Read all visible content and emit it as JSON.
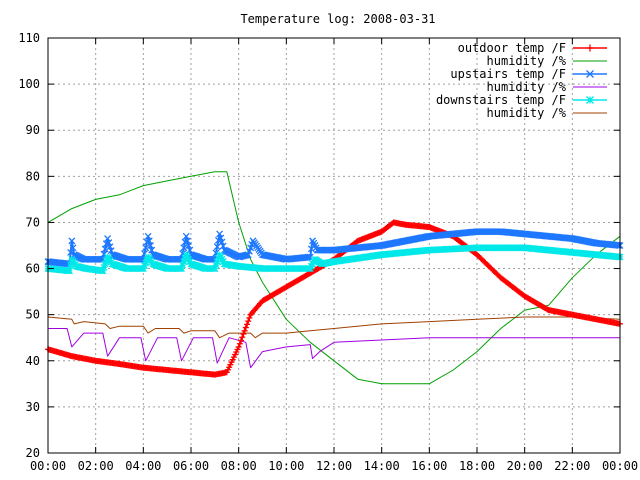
{
  "chart_data": {
    "type": "line",
    "title": "Temperature log: 2008-03-31",
    "xlabel": "",
    "ylabel": "",
    "x_ticks": [
      "00:00",
      "02:00",
      "04:00",
      "06:00",
      "08:00",
      "10:00",
      "12:00",
      "14:00",
      "16:00",
      "18:00",
      "20:00",
      "22:00",
      "00:00"
    ],
    "x_range_hours": [
      0,
      24
    ],
    "ylim": [
      20,
      110
    ],
    "y_ticks": [
      20,
      30,
      40,
      50,
      60,
      70,
      80,
      90,
      100,
      110
    ],
    "grid": true,
    "legend_position": "top-right",
    "series": [
      {
        "name": "outdoor temp /F",
        "color": "#ff0000",
        "marker": "plus",
        "x": [
          0,
          1,
          2,
          3,
          4,
          5,
          6,
          7,
          7.5,
          8,
          8.5,
          9,
          10,
          11,
          12,
          13,
          14,
          14.5,
          15,
          16,
          17,
          18,
          19,
          20,
          21,
          22,
          23,
          24
        ],
        "y": [
          42.5,
          41,
          40,
          39.3,
          38.5,
          38,
          37.5,
          37,
          37.5,
          43,
          50,
          53,
          56,
          59,
          62,
          66,
          68,
          70,
          69.5,
          69,
          67,
          63,
          58,
          54,
          51,
          50,
          49,
          48
        ]
      },
      {
        "name": "humidity /%",
        "color": "#00a000",
        "marker": "none",
        "x": [
          0,
          1,
          2,
          3,
          4,
          5,
          6,
          7,
          7.5,
          8,
          8.5,
          9,
          10,
          11,
          12,
          13,
          14,
          15,
          16,
          17,
          18,
          19,
          20,
          21,
          22,
          23,
          24
        ],
        "y": [
          70,
          73,
          75,
          76,
          78,
          79,
          80,
          81,
          81,
          70,
          62,
          57,
          49,
          44,
          40,
          36,
          35,
          35,
          35,
          38,
          42,
          47,
          51,
          52,
          58,
          63,
          67
        ]
      },
      {
        "name": "upstairs temp /F",
        "color": "#1e78ff",
        "marker": "x",
        "x": [
          0,
          0.9,
          1.0,
          1.1,
          1.5,
          2.3,
          2.5,
          2.7,
          3.3,
          4.0,
          4.2,
          4.4,
          5.0,
          5.6,
          5.8,
          6.0,
          6.6,
          7.0,
          7.2,
          7.4,
          8.0,
          8.4,
          8.6,
          9.0,
          10,
          11,
          11.1,
          11.3,
          12,
          13,
          14,
          15,
          16,
          17,
          18,
          19,
          20,
          21,
          22,
          23,
          24
        ],
        "y": [
          61.5,
          61,
          66,
          63,
          62,
          62,
          66.5,
          63,
          62,
          62,
          67,
          63,
          62,
          62,
          67,
          63,
          62,
          62,
          67.5,
          64,
          62.5,
          63,
          66,
          63,
          62,
          62.5,
          66,
          64,
          64,
          64.5,
          65,
          66,
          67,
          67.5,
          68,
          68,
          67.5,
          67,
          66.5,
          65.5,
          65
        ]
      },
      {
        "name": "humidity /%",
        "color": "#a000e0",
        "marker": "none",
        "x": [
          0,
          0.8,
          1.0,
          1.5,
          2.3,
          2.5,
          3.0,
          3.9,
          4.1,
          4.6,
          5.4,
          5.6,
          6.1,
          6.9,
          7.1,
          7.6,
          8.3,
          8.5,
          9,
          10,
          11,
          11.1,
          11.4,
          12,
          14,
          16,
          18,
          20,
          22,
          24
        ],
        "y": [
          47,
          47,
          43,
          46,
          46,
          41,
          45,
          45,
          40,
          45,
          45,
          40,
          45,
          45,
          39.5,
          45,
          44,
          38.5,
          42,
          43,
          43.5,
          40.5,
          42,
          44,
          44.5,
          45,
          45,
          45,
          45,
          45
        ]
      },
      {
        "name": "downstairs temp /F",
        "color": "#00e8e8",
        "marker": "star",
        "x": [
          0,
          0.9,
          1.0,
          1.2,
          1.6,
          2.3,
          2.5,
          2.7,
          3.3,
          4.0,
          4.2,
          4.4,
          5.0,
          5.6,
          5.8,
          6.0,
          6.6,
          7.0,
          7.2,
          7.4,
          8.0,
          9,
          10,
          11,
          11.2,
          11.5,
          12,
          14,
          16,
          18,
          20,
          22,
          24
        ],
        "y": [
          60,
          59.5,
          62,
          60.5,
          60,
          59.5,
          62.5,
          61,
          60,
          60,
          62.5,
          61,
          60,
          60,
          63,
          61,
          60,
          60,
          63,
          61,
          60.5,
          60,
          60,
          60,
          62,
          61,
          61.5,
          63,
          64,
          64.5,
          64.5,
          63.5,
          62.5
        ]
      },
      {
        "name": "humidity /%",
        "color": "#a04000",
        "marker": "none",
        "x": [
          0,
          1,
          1.1,
          1.5,
          2.4,
          2.6,
          3,
          4,
          4.2,
          4.5,
          5.5,
          5.7,
          6,
          7,
          7.2,
          7.6,
          8.5,
          8.7,
          9,
          10,
          11,
          12,
          14,
          16,
          18,
          20,
          22,
          24
        ],
        "y": [
          49.5,
          49,
          48,
          48.5,
          48,
          47,
          47.5,
          47.5,
          46,
          47,
          47,
          46,
          46.5,
          46.5,
          45,
          46,
          46,
          45,
          46,
          46,
          46.5,
          47,
          48,
          48.5,
          49,
          49.5,
          49.5,
          49
        ]
      }
    ]
  }
}
